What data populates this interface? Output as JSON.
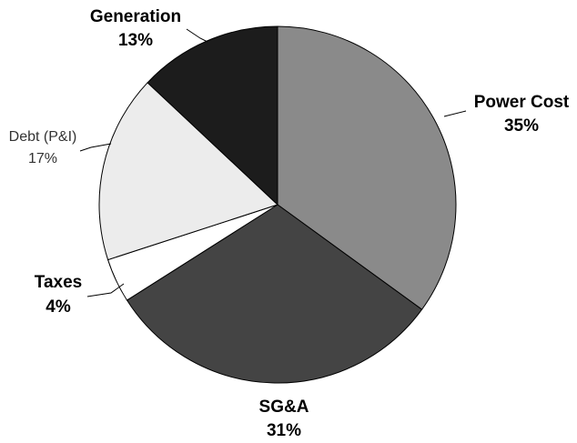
{
  "chart_data": {
    "type": "pie",
    "slices": [
      {
        "label": "Power Cost",
        "percent_label": "35%",
        "value": 35,
        "color": "#8a8a8a"
      },
      {
        "label": "SG&A",
        "percent_label": "31%",
        "value": 31,
        "color": "#444444"
      },
      {
        "label": "Taxes",
        "percent_label": "4%",
        "value": 4,
        "color": "#ffffff"
      },
      {
        "label": "Debt (P&I)",
        "percent_label": "17%",
        "value": 17,
        "color": "#ececec"
      },
      {
        "label": "Generation",
        "percent_label": "13%",
        "value": 13,
        "color": "#1c1c1c"
      }
    ]
  }
}
